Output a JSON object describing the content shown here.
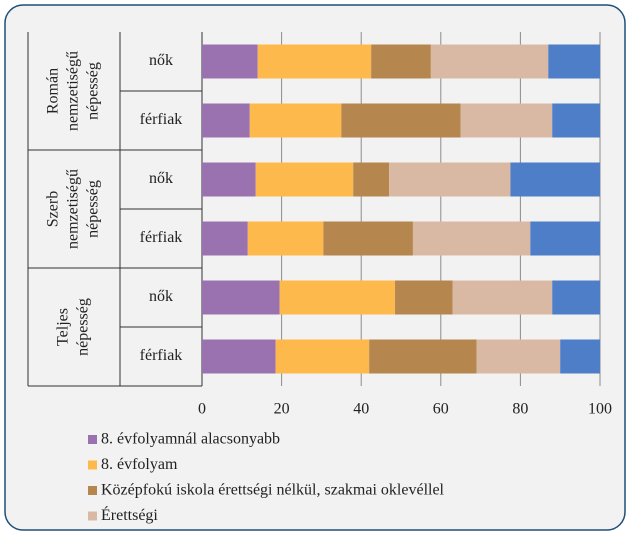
{
  "chart_data": {
    "type": "stacked_barh",
    "groups": [
      [
        "Román",
        "nemzetiségű",
        "népesség"
      ],
      [
        "Szerb",
        "nemzetiségű",
        "népesség"
      ],
      [
        "Teljes",
        "népesség"
      ]
    ],
    "categories": [
      "nők",
      "férfiak",
      "nők",
      "férfiak",
      "nők",
      "férfiak"
    ],
    "series": [
      {
        "name": "8. évfolyamnál alacsonyabb",
        "color": "#9b72b0",
        "values": [
          14,
          12,
          13.5,
          11.5,
          19.5,
          18.5
        ]
      },
      {
        "name": "8. évfolyam",
        "color": "#fdb94b",
        "values": [
          28.5,
          23,
          24.5,
          19,
          29,
          23.5
        ]
      },
      {
        "name": "Középfokú iskola érettségi nélkül, szakmai oklevéllel",
        "color": "#b5874f",
        "values": [
          15,
          30,
          9,
          22.5,
          14.5,
          27
        ]
      },
      {
        "name": "Érettségi",
        "color": "#d9b9a4",
        "values": [
          29.5,
          23,
          30.5,
          29.5,
          25,
          21
        ]
      },
      {
        "color": "#4f7ec9",
        "values": [
          13,
          12,
          22.5,
          17.5,
          12,
          10
        ]
      }
    ],
    "xlim": [
      0,
      100
    ],
    "xticks": [
      0,
      20,
      40,
      60,
      80,
      100
    ],
    "grid": true
  }
}
